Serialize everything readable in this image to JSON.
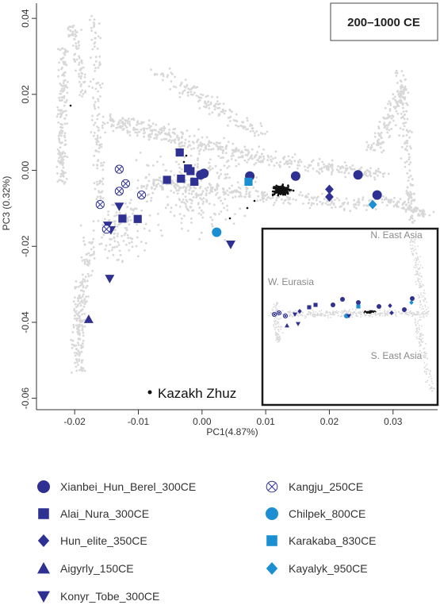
{
  "chart_data": {
    "type": "scatter",
    "title": "200–1000 CE",
    "xlabel": "PC1(4.87%)",
    "ylabel": "PC3 (0.32%)",
    "xlim": [
      -0.026,
      0.037
    ],
    "ylim": [
      -0.063,
      0.044
    ],
    "x_ticks": [
      -0.02,
      -0.01,
      0.0,
      0.01,
      0.02,
      0.03
    ],
    "x_tick_labels": [
      "-0.02",
      "-0.01",
      "0.00",
      "0.01",
      "0.02",
      "0.03"
    ],
    "y_ticks": [
      -0.06,
      -0.04,
      -0.02,
      0.0,
      0.02,
      0.04
    ],
    "y_tick_labels": [
      "-0.06",
      "-0.04",
      "-0.02",
      "0.00",
      "0.02",
      "0.04"
    ],
    "grid": false,
    "annotation": "Kazakh Zhuz",
    "inset_labels": [
      "N. East Asia",
      "W. Eurasia",
      "S. East Asia"
    ],
    "series": [
      {
        "name": "Xianbei_Hun_Berel_300CE",
        "marker": "circle",
        "color": "#2e3192",
        "points": [
          [
            -0.0002,
            -0.0012
          ],
          [
            0.0003,
            -0.0008
          ],
          [
            0.0075,
            -0.0015
          ],
          [
            0.0147,
            -0.0015
          ],
          [
            0.0245,
            -0.0012
          ],
          [
            0.0275,
            -0.0065
          ]
        ]
      },
      {
        "name": "Alai_Nura_300CE",
        "marker": "square",
        "color": "#2e3192",
        "points": [
          [
            -0.0035,
            0.0047
          ],
          [
            -0.0018,
            -0.0002
          ],
          [
            -0.0033,
            -0.0022
          ],
          [
            -0.0022,
            0.0005
          ],
          [
            -0.0055,
            -0.0025
          ],
          [
            -0.0012,
            -0.003
          ],
          [
            -0.0125,
            -0.0127
          ],
          [
            -0.0101,
            -0.0128
          ]
        ]
      },
      {
        "name": "Hun_elite_350CE",
        "marker": "diamond",
        "color": "#2e3192",
        "points": [
          [
            0.02,
            -0.005
          ],
          [
            0.02,
            -0.007
          ]
        ]
      },
      {
        "name": "Aigyrly_150CE",
        "marker": "triangle-up",
        "color": "#2e3192",
        "points": [
          [
            -0.0178,
            -0.0392
          ]
        ]
      },
      {
        "name": "Konyr_Tobe_300CE",
        "marker": "triangle-down",
        "color": "#2e3192",
        "points": [
          [
            -0.013,
            -0.0095
          ],
          [
            -0.0148,
            -0.0145
          ],
          [
            -0.0143,
            -0.0157
          ],
          [
            -0.0145,
            -0.0285
          ],
          [
            0.0045,
            -0.0195
          ]
        ]
      },
      {
        "name": "Kangju_250CE",
        "marker": "circle-x",
        "color": "#2e3192",
        "points": [
          [
            -0.013,
            0.0003
          ],
          [
            -0.012,
            -0.0035
          ],
          [
            -0.013,
            -0.0055
          ],
          [
            -0.0095,
            -0.0065
          ],
          [
            -0.016,
            -0.009
          ],
          [
            -0.015,
            -0.0155
          ]
        ]
      },
      {
        "name": "Chilpek_800CE",
        "marker": "circle",
        "color": "#1b8fd2",
        "points": [
          [
            0.0023,
            -0.0163
          ]
        ]
      },
      {
        "name": "Karakaba_830CE",
        "marker": "square",
        "color": "#1b8fd2",
        "points": [
          [
            0.0073,
            -0.003
          ]
        ]
      },
      {
        "name": "Kayalyk_950CE",
        "marker": "diamond",
        "color": "#1b8fd2",
        "points": [
          [
            0.0268,
            -0.009
          ]
        ]
      }
    ]
  },
  "colors": {
    "dark_blue": "#2e3192",
    "light_blue": "#1b8fd2",
    "background_points": "#d8d8d8",
    "reference_points": "#111111"
  }
}
